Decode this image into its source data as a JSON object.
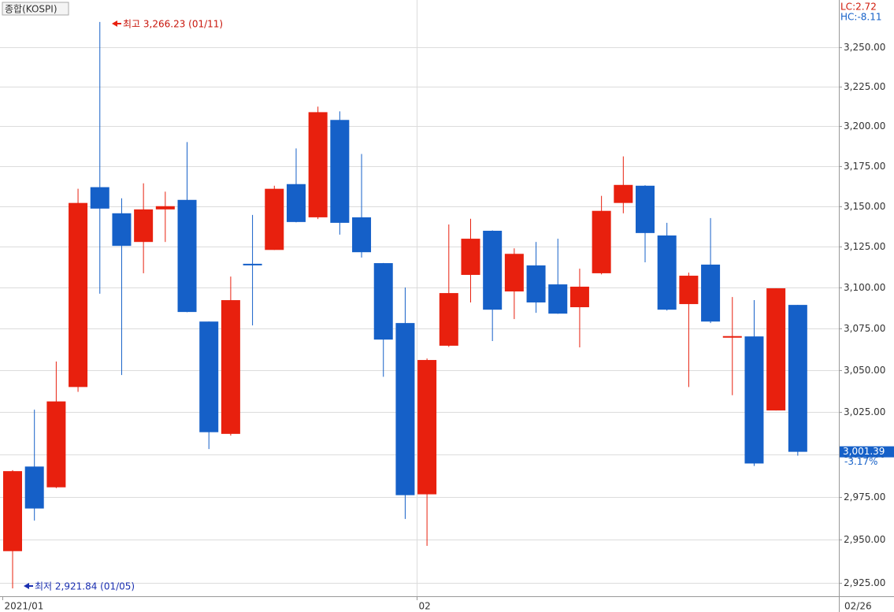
{
  "chart_data": {
    "type": "candlestick",
    "title": "종합(KOSPI)",
    "categories": [
      "2021/01",
      null,
      null,
      null,
      null,
      null,
      null,
      null,
      null,
      null,
      null,
      null,
      null,
      null,
      null,
      null,
      null,
      null,
      null,
      "02",
      null,
      null,
      null,
      null,
      null,
      null,
      null,
      null,
      null,
      null,
      null,
      null,
      null,
      null,
      null,
      null,
      null
    ],
    "last_date": "02/26",
    "open": [
      2943.3,
      2992.7,
      2980.5,
      3039.9,
      3161.8,
      3145.6,
      3127.9,
      3148.0,
      3153.9,
      3079.3,
      3012.0,
      3114.5,
      3123.0,
      3163.7,
      3143.1,
      3203.9,
      3143.1,
      3114.9,
      3078.4,
      2976.4,
      3064.7,
      3107.7,
      3134.8,
      3097.6,
      3113.5,
      3101.9,
      3088.0,
      3108.7,
      3152.0,
      3162.7,
      3131.9,
      3089.9,
      3114.0,
      3069.9,
      3070.3,
      3025.9,
      3089.4
    ],
    "high": [
      2990.6,
      3026.4,
      3055.2,
      3160.8,
      3266.23,
      3154.9,
      3164.2,
      3159.0,
      3190.0,
      3079.3,
      3106.7,
      3144.6,
      3162.7,
      3186.0,
      3212.3,
      3209.3,
      3182.5,
      3115.0,
      3100.0,
      3057.0,
      3138.7,
      3142.2,
      3135.0,
      3124.0,
      3127.9,
      3129.9,
      3111.5,
      3156.4,
      3181.0,
      3163.0,
      3139.7,
      3109.1,
      3142.6,
      3094.2,
      3092.3,
      3099.5,
      3089.4
    ],
    "low": [
      2921.84,
      2961.1,
      2980.0,
      3037.0,
      3096.2,
      3047.1,
      3108.7,
      3127.9,
      3085.0,
      3003.0,
      3011.0,
      3077.0,
      3123.0,
      3140.0,
      3142.0,
      3132.4,
      3118.3,
      3046.0,
      2962.0,
      2946.4,
      3064.0,
      3090.9,
      3067.5,
      3080.8,
      3084.6,
      3084.0,
      3063.7,
      3108.0,
      3145.6,
      3115.4,
      3086.0,
      3039.9,
      3078.4,
      3035.0,
      2993.0,
      3025.9,
      2999.1
    ],
    "close": [
      2990.0,
      2968.1,
      3031.3,
      3152.0,
      3148.5,
      3125.5,
      3148.0,
      3150.0,
      3085.1,
      3013.0,
      3092.3,
      3114.0,
      3160.8,
      3140.2,
      3208.8,
      3139.7,
      3121.6,
      3068.4,
      2975.9,
      3056.1,
      3096.6,
      3129.9,
      3086.5,
      3120.6,
      3090.9,
      3084.1,
      3100.5,
      3147.1,
      3163.2,
      3133.4,
      3086.5,
      3107.2,
      3079.3,
      3070.5,
      2994.5,
      3099.5,
      3001.39
    ],
    "up_color": "#e8200e",
    "down_color": "#1560c8",
    "log_scale": true,
    "grid": true,
    "ylim": [
      2917.3,
      3280.4
    ],
    "yticks": [
      {
        "value": 2925,
        "label": "2,925.00"
      },
      {
        "value": 2950,
        "label": "2,950.00"
      },
      {
        "value": 2975,
        "label": "2,975.00"
      },
      {
        "value": 3000,
        "label": "3,000.00"
      },
      {
        "value": 3025,
        "label": "3,025.00"
      },
      {
        "value": 3050,
        "label": "3,050.00"
      },
      {
        "value": 3075,
        "label": "3,075.00"
      },
      {
        "value": 3100,
        "label": "3,100.00"
      },
      {
        "value": 3125,
        "label": "3,125.00"
      },
      {
        "value": 3150,
        "label": "3,150.00"
      },
      {
        "value": 3175,
        "label": "3,175.00"
      },
      {
        "value": 3200,
        "label": "3,200.00"
      },
      {
        "value": 3225,
        "label": "3,225.00"
      },
      {
        "value": 3250,
        "label": "3,250.00"
      }
    ],
    "high_annotation": "최고 3,266.23 (01/11)",
    "low_annotation": "최저 2,921.84 (01/05)",
    "last_price": {
      "value": 3001.39,
      "label": "3,001.39"
    },
    "last_change": "-3.17%",
    "lc": "LC:2.72",
    "hc": "HC:-8.11"
  }
}
